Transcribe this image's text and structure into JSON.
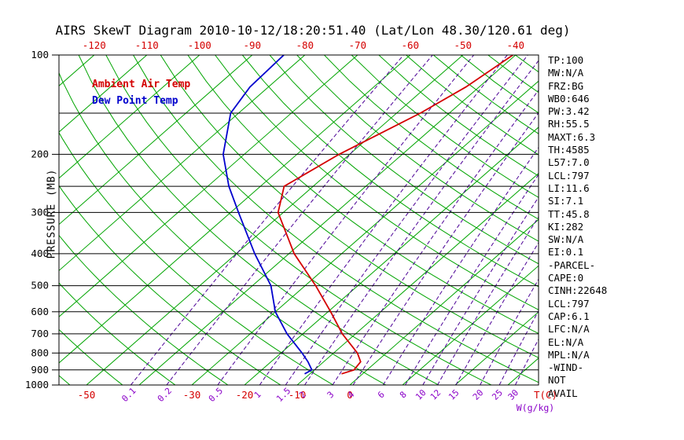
{
  "title": "AIRS SkewT Diagram 2010-10-12/18:20:51.40 (Lat/Lon 48.30/120.61 deg)",
  "legend": {
    "ambient": "Ambient Air Temp",
    "dewpoint": "Dew Point Temp"
  },
  "axes": {
    "pressure_label": "PRESSURE (MB)",
    "pressure_ticks": [
      100,
      200,
      300,
      400,
      500,
      600,
      700,
      800,
      900,
      1000
    ],
    "pressure_lines": [
      100,
      150,
      200,
      250,
      300,
      400,
      500,
      600,
      700,
      800,
      900,
      1000
    ],
    "top_temp_ticks": [
      -120,
      -110,
      -100,
      -90,
      -80,
      -70,
      -60,
      -50,
      -40
    ],
    "bottom_temp_ticks": [
      -50,
      -30,
      -20,
      -10,
      0
    ],
    "temp_unit_label": "T(C)",
    "mixing_unit_label": "W(g/kg)"
  },
  "stats_panel": {
    "lines": [
      "TP:100",
      "MW:N/A",
      "FRZ:BG",
      "WB0:646",
      "PW:3.42",
      "RH:55.5",
      "MAXT:6.3",
      "TH:4585",
      "L57:7.0",
      "LCL:797",
      "LI:11.6",
      "SI:7.1",
      "TT:45.8",
      "KI:282",
      "SW:N/A",
      "EI:0.1",
      "-PARCEL-",
      "CAPE:0",
      "CINH:22648",
      "LCL:797",
      "CAP:6.1",
      "LFC:N/A",
      "EL:N/A",
      "MPL:N/A",
      "-WIND-",
      "NOT",
      "AVAIL"
    ]
  },
  "colors": {
    "green_line": "#00a400",
    "dashed_purple": "#4b0096",
    "label_purple": "#8a00c8",
    "red": "#d40000",
    "blue": "#0000cd",
    "black": "#000000"
  },
  "chart_data": {
    "type": "line",
    "chart_kind": "skew-t log-p thermodynamic diagram",
    "title": "AIRS SkewT Diagram 2010-10-12/18:20:51.40 (Lat/Lon 48.30/120.61 deg)",
    "xlabel": "T(C)",
    "ylabel": "PRESSURE (MB)",
    "y_scale": "log",
    "ylim_mb": [
      100,
      1000
    ],
    "top_axis_temp_labels_c": [
      -120,
      -110,
      -100,
      -90,
      -80,
      -70,
      -60,
      -50,
      -40
    ],
    "bottom_axis_temp_labels_c": [
      -50,
      -30,
      -20,
      -10,
      0
    ],
    "isotherms_c": {
      "start": -120,
      "end": 40,
      "step": 10
    },
    "dry_adiabats_K": {
      "start": 220,
      "end": 460,
      "step": 10
    },
    "mixing_ratio_lines_g_per_kg": [
      0.1,
      0.2,
      0.5,
      1,
      1.5,
      2,
      3,
      4,
      6,
      8,
      10,
      12,
      15,
      20,
      25,
      30
    ],
    "series": [
      {
        "name": "Ambient Air Temp",
        "color": "#d40000",
        "points_mb_c": [
          [
            925,
            -4
          ],
          [
            900,
            -2.5
          ],
          [
            850,
            -3
          ],
          [
            800,
            -5.5
          ],
          [
            700,
            -12.5
          ],
          [
            600,
            -19.5
          ],
          [
            500,
            -28
          ],
          [
            400,
            -39
          ],
          [
            300,
            -51
          ],
          [
            250,
            -55.5
          ],
          [
            200,
            -52
          ],
          [
            150,
            -45.5
          ],
          [
            125,
            -42.5
          ],
          [
            100,
            -40.5
          ]
        ]
      },
      {
        "name": "Dew Point Temp",
        "color": "#0000cd",
        "points_mb_c": [
          [
            925,
            -11
          ],
          [
            900,
            -10.5
          ],
          [
            850,
            -13
          ],
          [
            800,
            -16
          ],
          [
            700,
            -23
          ],
          [
            600,
            -30
          ],
          [
            500,
            -36.5
          ],
          [
            400,
            -46.5
          ],
          [
            300,
            -58.5
          ],
          [
            250,
            -66
          ],
          [
            200,
            -74
          ],
          [
            150,
            -81.5
          ],
          [
            125,
            -83.5
          ],
          [
            100,
            -84
          ]
        ]
      }
    ]
  }
}
